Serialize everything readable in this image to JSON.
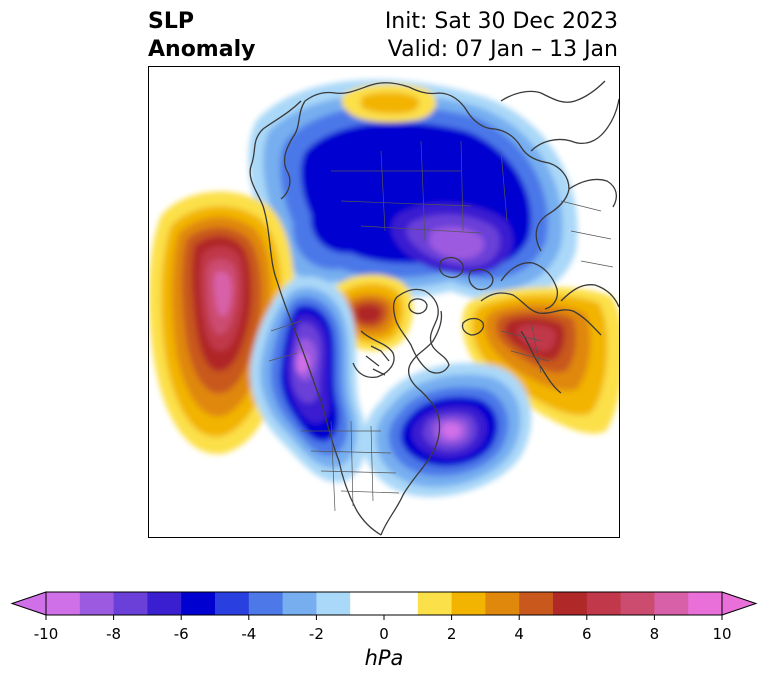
{
  "header": {
    "title_line1": "SLP",
    "title_line2": "Anomaly",
    "init_text": "Init: Sat 30 Dec 2023",
    "valid_text": "Valid: 07 Jan – 13 Jan"
  },
  "map": {
    "projection": "north-polar-stereographic",
    "coastline_color": "#3a3a3a",
    "field": "SLP anomaly",
    "anomaly_centers": [
      {
        "name": "north-pacific-high",
        "peak_hpa": 9,
        "sign": "positive"
      },
      {
        "name": "greenland-high",
        "peak_hpa": 6,
        "sign": "positive"
      },
      {
        "name": "western-europe-high",
        "peak_hpa": 6,
        "sign": "positive"
      },
      {
        "name": "barents-kara-high",
        "peak_hpa": 3,
        "sign": "positive"
      },
      {
        "name": "siberia-arctic-low",
        "peak_hpa": -9,
        "sign": "negative"
      },
      {
        "name": "alaska-canada-low",
        "peak_hpa": -10,
        "sign": "negative"
      },
      {
        "name": "north-atlantic-low",
        "peak_hpa": -10,
        "sign": "negative"
      }
    ]
  },
  "colorbar": {
    "min": -10,
    "max": 10,
    "step": 1,
    "extend": "both",
    "unit": "hPa",
    "tick_labels": [
      "-10",
      "-8",
      "-6",
      "-4",
      "-2",
      "0",
      "2",
      "4",
      "6",
      "8",
      "10"
    ],
    "colors": [
      "#d070e8",
      "#9c5ae0",
      "#6a40d8",
      "#3a1fd0",
      "#0000d0",
      "#2a3fe0",
      "#4c78e8",
      "#76aef0",
      "#aad8f8",
      "#ffffff",
      "#ffffff",
      "#fce04a",
      "#f2b400",
      "#e0880c",
      "#c8581c",
      "#b02828",
      "#c0384a",
      "#cc4c70",
      "#d860a8",
      "#e870d8"
    ],
    "extend_low_color": "#d070e8",
    "extend_high_color": "#e870d8"
  }
}
